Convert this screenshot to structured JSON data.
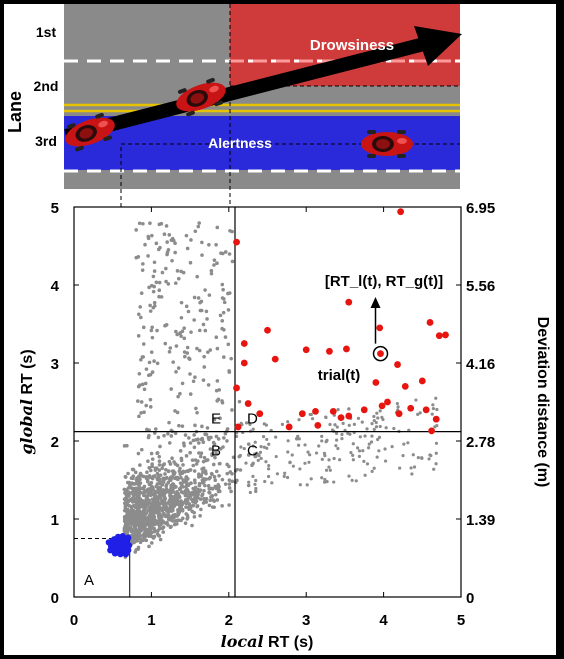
{
  "scene": {
    "lane_axis_label": "Lane",
    "lanes": [
      "1st",
      "2nd",
      "3rd"
    ],
    "drowsiness_label": "Drowsiness",
    "alertness_label": "Alertness",
    "colors": {
      "road": "#8a8a8a",
      "drowsy_zone": "#cf3b3b",
      "alert_zone": "#2a2adb",
      "center_line": "#e6c200",
      "lane_dash": "#ffffff",
      "arrow": "#000000",
      "car": "#c81414"
    }
  },
  "chart_data": {
    "type": "scatter",
    "xlabel_italic": "local",
    "xlabel_rest": " RT (s)",
    "ylabel_italic": "global",
    "ylabel_rest": " RT (s)",
    "y2label": "Deviation distance (m)",
    "xlim": [
      0,
      5
    ],
    "ylim": [
      0,
      5
    ],
    "xticks": [
      "0",
      "1",
      "2",
      "3",
      "4",
      "5"
    ],
    "yticks": [
      "0",
      "1",
      "2",
      "3",
      "4",
      "5"
    ],
    "y2_ticks": [
      {
        "value": 0,
        "label": "0"
      },
      {
        "value": 1,
        "label": "1.39"
      },
      {
        "value": 2,
        "label": "2.78"
      },
      {
        "value": 3,
        "label": "4.16"
      },
      {
        "value": 4,
        "label": "5.56"
      },
      {
        "value": 5,
        "label": "6.95"
      }
    ],
    "thresholds": {
      "x": 2.08,
      "y": 2.12,
      "low_x": 0.72,
      "low_y": 0.75
    },
    "region_labels": {
      "A": "A",
      "B": "B",
      "C": "C",
      "D": "D",
      "E": "E"
    },
    "annotation": {
      "vector": "[RT_l(t), RT_g(t)]",
      "trial": "trial(t)"
    },
    "highlight_point": {
      "x": 3.96,
      "y": 3.12
    },
    "series": [
      {
        "name": "drowsy",
        "color": "#e8140f",
        "points": [
          [
            4.22,
            4.94
          ],
          [
            2.1,
            4.55
          ],
          [
            3.55,
            3.78
          ],
          [
            4.6,
            3.52
          ],
          [
            4.72,
            3.35
          ],
          [
            4.8,
            3.36
          ],
          [
            2.5,
            3.42
          ],
          [
            2.2,
            3.25
          ],
          [
            2.6,
            3.05
          ],
          [
            3.3,
            3.15
          ],
          [
            3.52,
            3.18
          ],
          [
            3.95,
            3.45
          ],
          [
            2.2,
            3.0
          ],
          [
            3.0,
            3.17
          ],
          [
            4.18,
            2.98
          ],
          [
            4.28,
            2.7
          ],
          [
            4.5,
            2.77
          ],
          [
            4.2,
            2.35
          ],
          [
            2.1,
            2.68
          ],
          [
            2.25,
            2.48
          ],
          [
            2.4,
            2.35
          ],
          [
            3.9,
            2.75
          ],
          [
            4.05,
            2.5
          ],
          [
            2.95,
            2.35
          ],
          [
            3.12,
            2.38
          ],
          [
            3.35,
            2.38
          ],
          [
            3.55,
            2.32
          ],
          [
            3.75,
            2.4
          ],
          [
            4.35,
            2.42
          ],
          [
            4.55,
            2.4
          ],
          [
            4.62,
            2.13
          ],
          [
            4.68,
            2.28
          ],
          [
            2.12,
            2.18
          ],
          [
            2.78,
            2.18
          ],
          [
            3.15,
            2.2
          ],
          [
            3.45,
            2.3
          ],
          [
            3.98,
            2.45
          ]
        ]
      },
      {
        "name": "alert",
        "color": "#1f1fe6",
        "points": [
          [
            0.45,
            0.7
          ],
          [
            0.5,
            0.62
          ],
          [
            0.52,
            0.74
          ],
          [
            0.55,
            0.68
          ],
          [
            0.58,
            0.6
          ],
          [
            0.6,
            0.73
          ],
          [
            0.62,
            0.66
          ],
          [
            0.65,
            0.58
          ],
          [
            0.66,
            0.71
          ],
          [
            0.68,
            0.64
          ],
          [
            0.7,
            0.76
          ],
          [
            0.48,
            0.65
          ],
          [
            0.53,
            0.56
          ],
          [
            0.57,
            0.77
          ],
          [
            0.6,
            0.55
          ],
          [
            0.63,
            0.78
          ],
          [
            0.67,
            0.55
          ],
          [
            0.7,
            0.6
          ],
          [
            0.56,
            0.63
          ],
          [
            0.61,
            0.69
          ],
          [
            0.64,
            0.72
          ],
          [
            0.5,
            0.72
          ],
          [
            0.59,
            0.64
          ],
          [
            0.66,
            0.62
          ],
          [
            0.69,
            0.69
          ],
          [
            0.54,
            0.7
          ],
          [
            0.47,
            0.6
          ],
          [
            0.62,
            0.59
          ],
          [
            0.71,
            0.66
          ],
          [
            0.58,
            0.71
          ]
        ]
      }
    ]
  }
}
